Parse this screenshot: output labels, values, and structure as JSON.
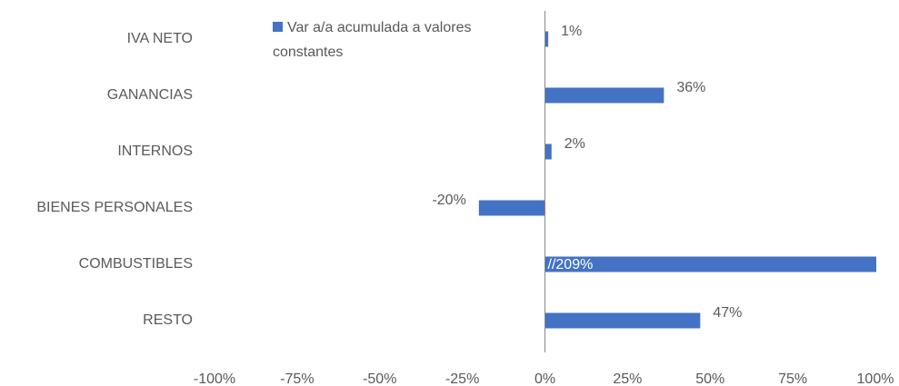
{
  "chart_data": {
    "type": "bar",
    "orientation": "horizontal",
    "categories": [
      "IVA NETO",
      "GANANCIAS",
      "INTERNOS",
      "BIENES PERSONALES",
      "COMBUSTIBLES",
      "RESTO"
    ],
    "series": [
      {
        "name": "Var a/a acumulada a valores constantes",
        "color": "#4472c4",
        "values": [
          1,
          36,
          2,
          -20,
          209,
          47
        ],
        "value_labels": [
          "1%",
          "36%",
          "2%",
          "-20%",
          "//209%",
          "47%"
        ]
      }
    ],
    "xlim": [
      -100,
      100
    ],
    "xticks": [
      {
        "value": -100,
        "label": "-100%"
      },
      {
        "value": -75,
        "label": "-75%"
      },
      {
        "value": -50,
        "label": "-50%"
      },
      {
        "value": -25,
        "label": "-25%"
      },
      {
        "value": 0,
        "label": "0%"
      },
      {
        "value": 25,
        "label": "25%"
      },
      {
        "value": 50,
        "label": "50%"
      },
      {
        "value": 75,
        "label": "75%"
      },
      {
        "value": 100,
        "label": "100%"
      }
    ],
    "legend": "top-left"
  }
}
